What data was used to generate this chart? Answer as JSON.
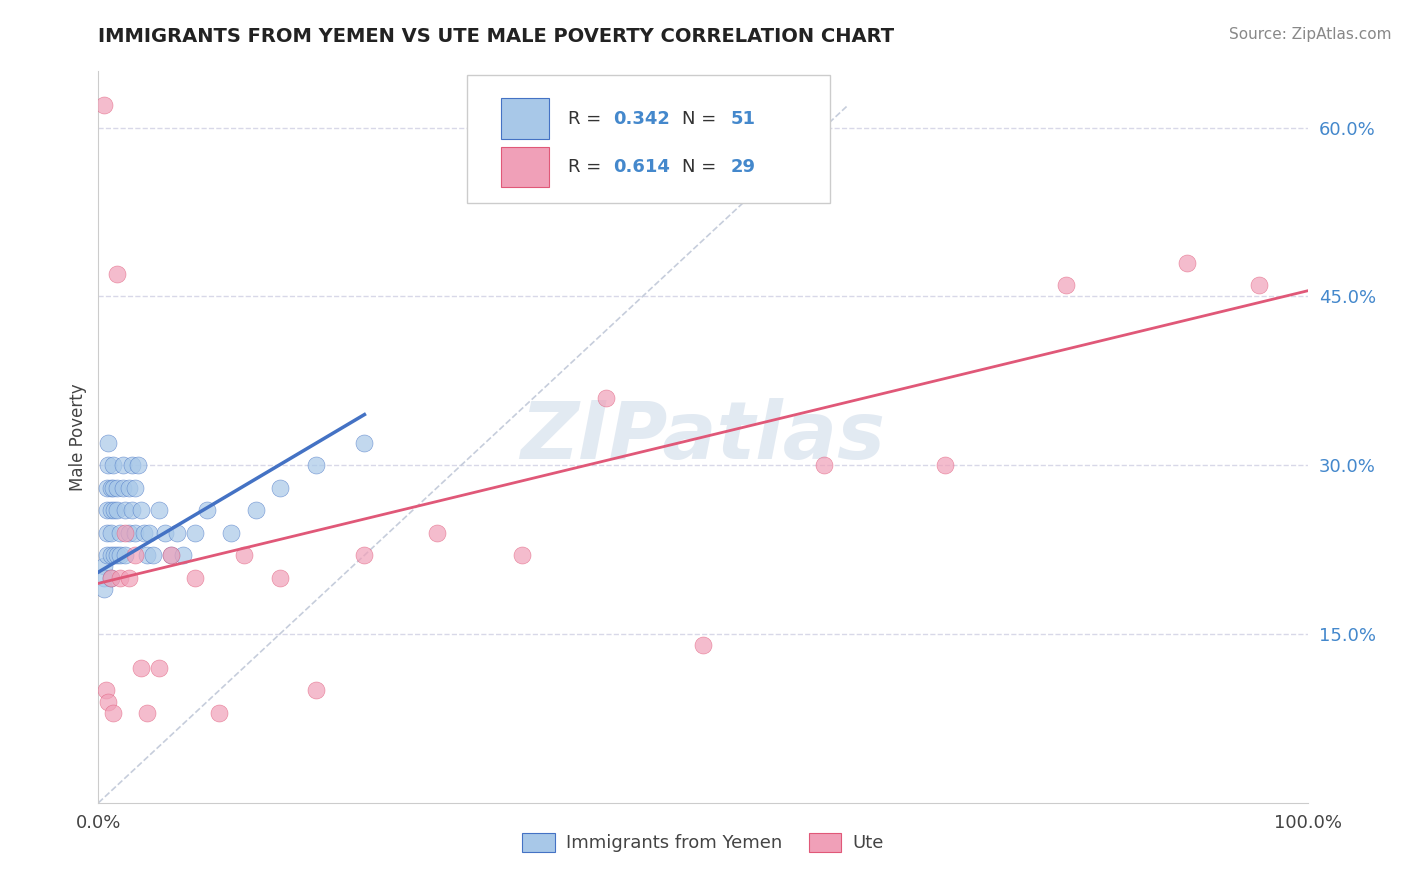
{
  "title": "IMMIGRANTS FROM YEMEN VS UTE MALE POVERTY CORRELATION CHART",
  "source": "Source: ZipAtlas.com",
  "ylabel": "Male Poverty",
  "xlim": [
    0,
    1.0
  ],
  "ylim": [
    0.0,
    0.65
  ],
  "x_tick_labels": [
    "0.0%",
    "100.0%"
  ],
  "x_tick_vals": [
    0.0,
    1.0
  ],
  "y_tick_labels_right": [
    "15.0%",
    "30.0%",
    "45.0%",
    "60.0%"
  ],
  "y_tick_vals_right": [
    0.15,
    0.3,
    0.45,
    0.6
  ],
  "blue_R": 0.342,
  "blue_N": 51,
  "pink_R": 0.614,
  "pink_N": 29,
  "blue_color": "#a8c8e8",
  "pink_color": "#f0a0b8",
  "blue_line_color": "#4472c4",
  "pink_line_color": "#e05878",
  "dashed_line_color": "#c0c8d8",
  "grid_color": "#d8d8e8",
  "watermark": "ZIPatlas",
  "legend_blue_label": "Immigrants from Yemen",
  "legend_pink_label": "Ute",
  "blue_x": [
    0.005,
    0.005,
    0.005,
    0.007,
    0.007,
    0.007,
    0.007,
    0.008,
    0.008,
    0.01,
    0.01,
    0.01,
    0.01,
    0.01,
    0.012,
    0.012,
    0.013,
    0.013,
    0.015,
    0.015,
    0.015,
    0.018,
    0.018,
    0.02,
    0.02,
    0.022,
    0.022,
    0.025,
    0.025,
    0.028,
    0.028,
    0.03,
    0.03,
    0.033,
    0.035,
    0.038,
    0.04,
    0.042,
    0.045,
    0.05,
    0.055,
    0.06,
    0.065,
    0.07,
    0.08,
    0.09,
    0.11,
    0.13,
    0.15,
    0.18,
    0.22
  ],
  "blue_y": [
    0.21,
    0.2,
    0.19,
    0.28,
    0.26,
    0.24,
    0.22,
    0.32,
    0.3,
    0.28,
    0.26,
    0.24,
    0.22,
    0.2,
    0.3,
    0.28,
    0.26,
    0.22,
    0.28,
    0.26,
    0.22,
    0.24,
    0.22,
    0.3,
    0.28,
    0.26,
    0.22,
    0.28,
    0.24,
    0.3,
    0.26,
    0.28,
    0.24,
    0.3,
    0.26,
    0.24,
    0.22,
    0.24,
    0.22,
    0.26,
    0.24,
    0.22,
    0.24,
    0.22,
    0.24,
    0.26,
    0.24,
    0.26,
    0.28,
    0.3,
    0.32
  ],
  "pink_x": [
    0.005,
    0.006,
    0.008,
    0.01,
    0.012,
    0.015,
    0.018,
    0.022,
    0.025,
    0.03,
    0.035,
    0.04,
    0.05,
    0.06,
    0.08,
    0.1,
    0.12,
    0.15,
    0.18,
    0.22,
    0.28,
    0.35,
    0.42,
    0.5,
    0.6,
    0.7,
    0.8,
    0.9,
    0.96
  ],
  "pink_y": [
    0.62,
    0.1,
    0.09,
    0.2,
    0.08,
    0.47,
    0.2,
    0.24,
    0.2,
    0.22,
    0.12,
    0.08,
    0.12,
    0.22,
    0.2,
    0.08,
    0.22,
    0.2,
    0.1,
    0.22,
    0.24,
    0.22,
    0.36,
    0.14,
    0.3,
    0.3,
    0.46,
    0.48,
    0.46
  ],
  "blue_line_x": [
    0.0,
    0.22
  ],
  "blue_line_y_start": 0.205,
  "blue_line_y_end": 0.345,
  "pink_line_x": [
    0.0,
    1.0
  ],
  "pink_line_y_start": 0.195,
  "pink_line_y_end": 0.455,
  "dash_line_x": [
    0.0,
    0.62
  ],
  "dash_line_y": [
    0.0,
    0.62
  ]
}
